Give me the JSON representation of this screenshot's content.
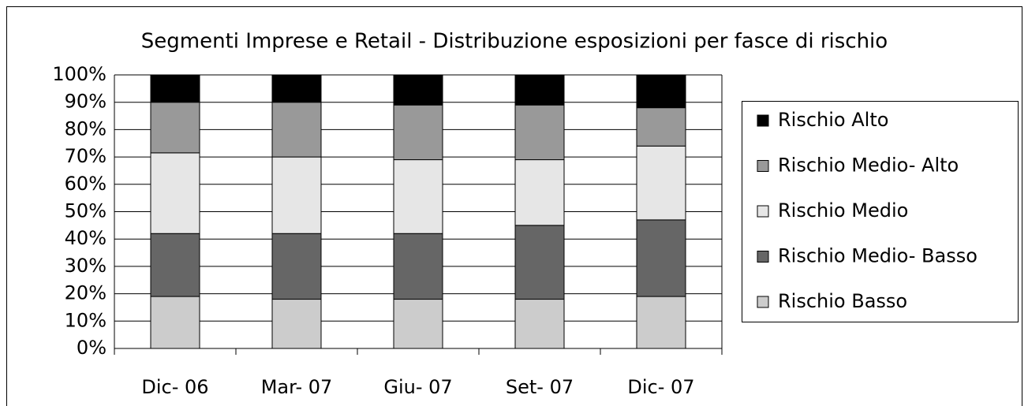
{
  "chart_data": {
    "type": "stacked_bar",
    "title": "Segmenti Imprese e Retail - Distribuzione esposizioni per fasce di rischio",
    "categories": [
      "Dic- 06",
      "Mar- 07",
      "Giu- 07",
      "Set- 07",
      "Dic- 07"
    ],
    "series": [
      {
        "name": "Rischio Basso",
        "color": "#cccccc",
        "values": [
          19,
          18,
          18,
          18,
          19
        ]
      },
      {
        "name": "Rischio Medio- Basso",
        "color": "#666666",
        "values": [
          23,
          24,
          24,
          27,
          28
        ]
      },
      {
        "name": "Rischio Medio",
        "color": "#e6e6e6",
        "values": [
          29.5,
          28,
          27,
          24,
          27
        ]
      },
      {
        "name": "Rischio Medio- Alto",
        "color": "#999999",
        "values": [
          18.5,
          20,
          20,
          20,
          14
        ]
      },
      {
        "name": "Rischio Alto",
        "color": "#000000",
        "values": [
          10,
          10,
          11,
          11,
          12
        ]
      }
    ],
    "ylim": [
      0,
      100
    ],
    "yticks": [
      {
        "value": 0,
        "label": "0%"
      },
      {
        "value": 10,
        "label": "10%"
      },
      {
        "value": 20,
        "label": "20%"
      },
      {
        "value": 30,
        "label": "30%"
      },
      {
        "value": 40,
        "label": "40%"
      },
      {
        "value": 50,
        "label": "50%"
      },
      {
        "value": 60,
        "label": "60%"
      },
      {
        "value": 70,
        "label": "70%"
      },
      {
        "value": 80,
        "label": "80%"
      },
      {
        "value": 90,
        "label": "90%"
      },
      {
        "value": 100,
        "label": "100%"
      }
    ],
    "grid": true
  }
}
